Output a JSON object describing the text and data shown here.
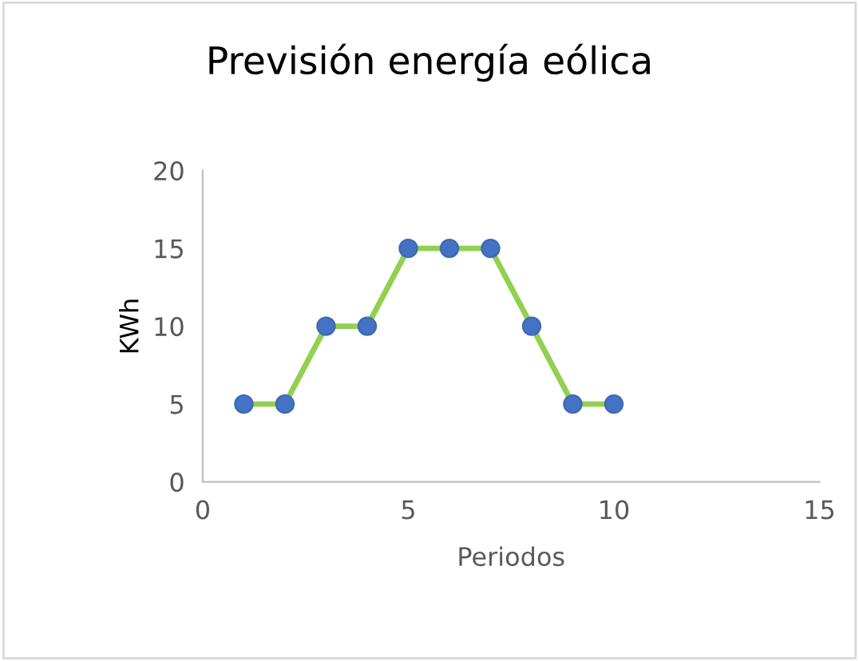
{
  "chart_data": {
    "type": "line",
    "title": "Previsión energía eólica",
    "xlabel": "Periodos",
    "ylabel": "KWh",
    "x": [
      1,
      2,
      3,
      4,
      5,
      6,
      7,
      8,
      9,
      10
    ],
    "series": [
      {
        "color": "#92d050",
        "colors": [
          "#4472c4",
          "#4472c4",
          "#4472c4",
          "#4472c4",
          "#4472c4",
          "#4472c4",
          "#4472c4",
          "#4472c4",
          "#4472c4",
          "#4472c4"
        ],
        "values": [
          5,
          5,
          10,
          10,
          15,
          15,
          15,
          10,
          5,
          5
        ]
      }
    ],
    "xlim": [
      0,
      15
    ],
    "xticks": [
      0,
      5,
      10,
      15
    ],
    "ylim": [
      0,
      20
    ],
    "yticks": [
      0,
      5,
      10,
      15,
      20
    ],
    "grid": false,
    "legend": false,
    "marker": "circle",
    "line_style": "solid"
  }
}
